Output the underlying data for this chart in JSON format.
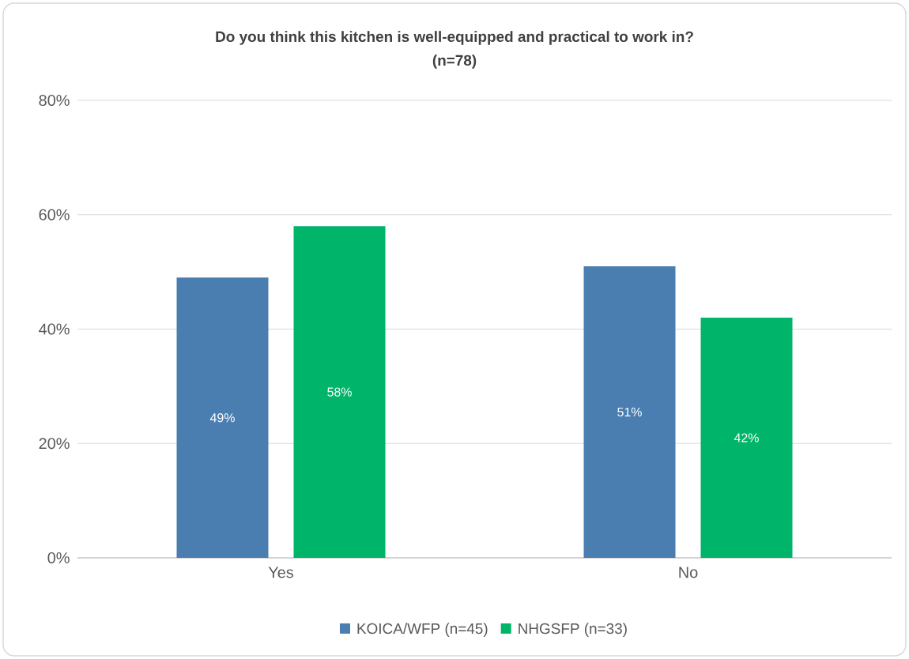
{
  "chart_data": {
    "type": "bar",
    "title": "Do you think this kitchen is well-equipped and practical to work in?",
    "subtitle": "(n=78)",
    "categories": [
      "Yes",
      "No"
    ],
    "series": [
      {
        "name": "KOICA/WFP (n=45)",
        "color": "#4a7eb0",
        "values": [
          49,
          51
        ],
        "value_labels": [
          "49%",
          "51%"
        ]
      },
      {
        "name": "NHGSFP (n=33)",
        "color": "#00b46a",
        "values": [
          58,
          42
        ],
        "value_labels": [
          "58%",
          "42%"
        ]
      }
    ],
    "ylim": [
      0,
      80
    ],
    "yticks": [
      {
        "value": 0,
        "label": "0%"
      },
      {
        "value": 20,
        "label": "20%"
      },
      {
        "value": 40,
        "label": "40%"
      },
      {
        "value": 60,
        "label": "60%"
      },
      {
        "value": 80,
        "label": "80%"
      }
    ],
    "grid": "y",
    "legend": "bottom"
  }
}
